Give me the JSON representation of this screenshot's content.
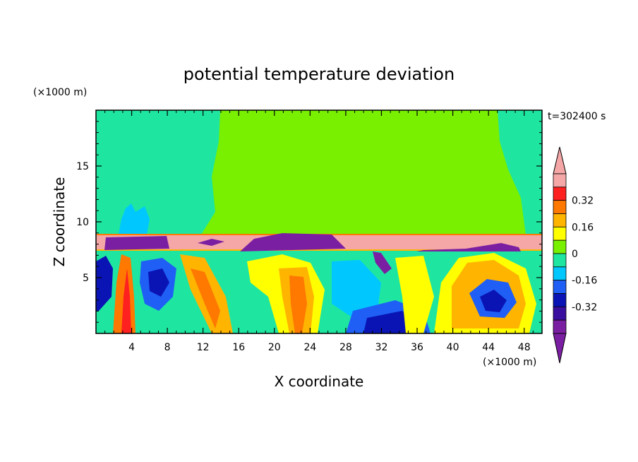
{
  "chart_data": {
    "type": "heatmap",
    "title": "potential temperature deviation",
    "xlabel": "X coordinate",
    "ylabel": "Z coordinate",
    "x_unit": "(×1000 m)",
    "y_unit": "(×1000 m)",
    "time_label": "t=302400 s",
    "xlim": [
      0,
      50
    ],
    "ylim": [
      0,
      20
    ],
    "x_ticks": [
      4,
      8,
      12,
      16,
      20,
      24,
      28,
      32,
      36,
      40,
      44,
      48
    ],
    "y_ticks": [
      5,
      10,
      15
    ],
    "colorbar": {
      "levels": [
        -0.48,
        -0.4,
        -0.32,
        -0.24,
        -0.16,
        -0.08,
        0,
        0.08,
        0.16,
        0.24,
        0.32,
        0.4,
        0.48
      ],
      "labels": [
        "-0.32",
        "-0.16",
        "0",
        "0.16",
        "0.32"
      ],
      "label_values": [
        -0.32,
        -0.16,
        0,
        0.16,
        0.32
      ],
      "colors": [
        "#7b1fa2",
        "#3a0fa0",
        "#0a14b4",
        "#1f5ff5",
        "#00c8ff",
        "#1ee6a0",
        "#78f000",
        "#ffff00",
        "#ffb400",
        "#ff7800",
        "#ff2020",
        "#f5a6a6"
      ],
      "over_color": "#f5a6a6",
      "under_color": "#7b1fa2"
    },
    "regions": {
      "upper_background_value": 0.02,
      "inversion_layer_z": [
        7.5,
        8.9
      ],
      "inversion_value": 0.45,
      "lower_layer_z": [
        0,
        7.5
      ]
    }
  }
}
